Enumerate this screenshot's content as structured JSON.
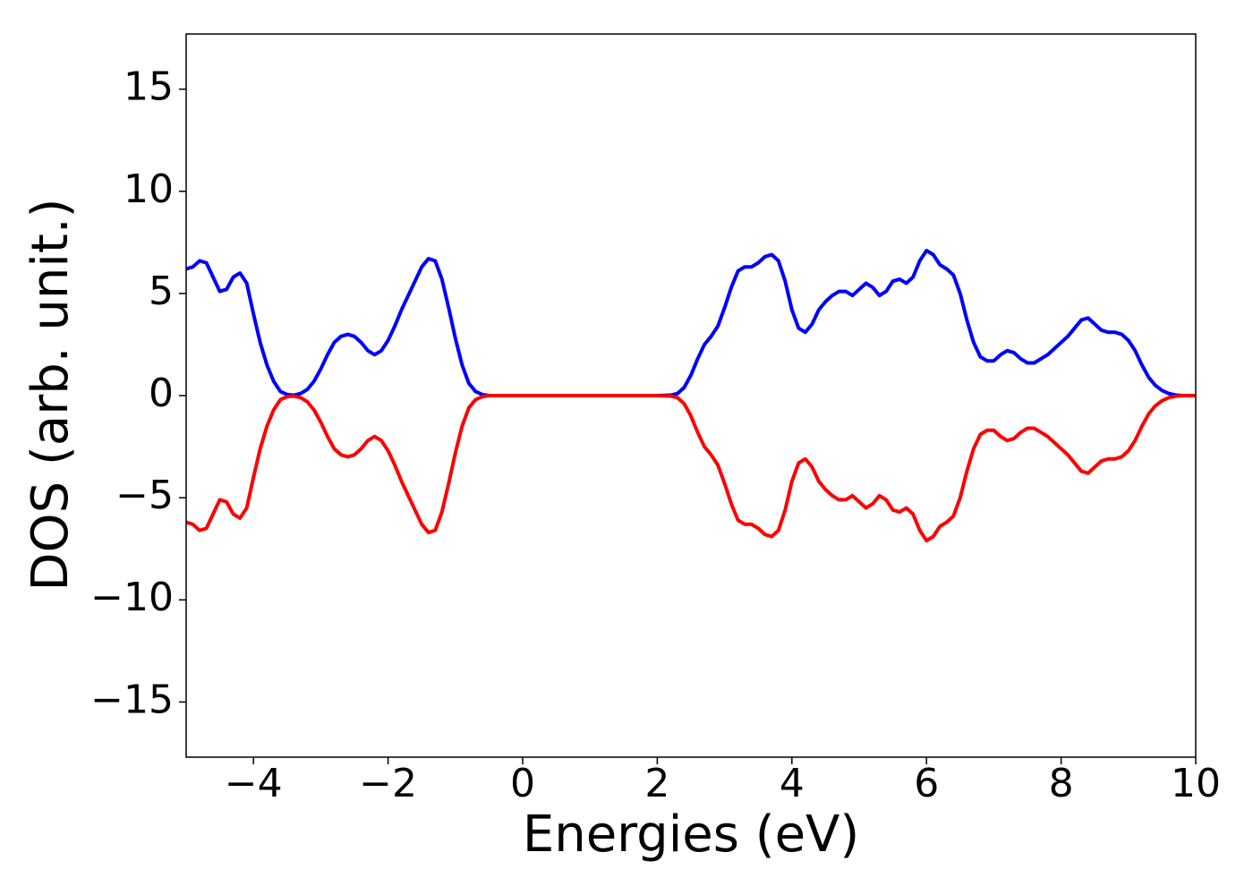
{
  "chart_data": {
    "type": "line",
    "xlabel": "Energies (eV)",
    "ylabel": "DOS (arb. unit.)",
    "xlim": [
      -5,
      10
    ],
    "ylim": [
      -17.7,
      17.7
    ],
    "xticks": [
      {
        "value": -4,
        "label": "−4"
      },
      {
        "value": -2,
        "label": "−2"
      },
      0,
      2,
      4,
      6,
      8,
      10
    ],
    "yticks": [
      {
        "value": -15,
        "label": "−15"
      },
      {
        "value": -10,
        "label": "−10"
      },
      {
        "value": -5,
        "label": "−5"
      },
      0,
      5,
      10,
      15
    ],
    "grid": false,
    "x": [
      -5,
      -4.9,
      -4.8,
      -4.7,
      -4.6,
      -4.5,
      -4.4,
      -4.3,
      -4.2,
      -4.1,
      -4,
      -3.9,
      -3.8,
      -3.7,
      -3.6,
      -3.5,
      -3.4,
      -3.3,
      -3.2,
      -3.1,
      -3,
      -2.9,
      -2.8,
      -2.7,
      -2.6,
      -2.5,
      -2.4,
      -2.3,
      -2.2,
      -2.1,
      -2,
      -1.9,
      -1.8,
      -1.7,
      -1.6,
      -1.5,
      -1.4,
      -1.3,
      -1.2,
      -1.1,
      -1,
      -0.9,
      -0.8,
      -0.7,
      -0.6,
      -0.5,
      0,
      1,
      2,
      2.2,
      2.3,
      2.4,
      2.5,
      2.6,
      2.7,
      2.8,
      2.9,
      3,
      3.1,
      3.2,
      3.3,
      3.4,
      3.5,
      3.6,
      3.7,
      3.8,
      3.9,
      4,
      4.1,
      4.2,
      4.3,
      4.4,
      4.5,
      4.6,
      4.7,
      4.8,
      4.9,
      5,
      5.1,
      5.2,
      5.3,
      5.4,
      5.5,
      5.6,
      5.7,
      5.8,
      5.9,
      6,
      6.1,
      6.2,
      6.3,
      6.4,
      6.5,
      6.6,
      6.7,
      6.8,
      6.9,
      7,
      7.1,
      7.2,
      7.3,
      7.4,
      7.5,
      7.6,
      7.7,
      7.8,
      7.9,
      8,
      8.1,
      8.2,
      8.3,
      8.4,
      8.5,
      8.6,
      8.7,
      8.8,
      8.9,
      9,
      9.1,
      9.2,
      9.3,
      9.4,
      9.5,
      9.6,
      9.7,
      9.8,
      10
    ],
    "series": [
      {
        "color": "#0000ff",
        "values": [
          6.2,
          6.3,
          6.6,
          6.5,
          5.8,
          5.1,
          5.2,
          5.8,
          6.0,
          5.5,
          4.0,
          2.6,
          1.5,
          0.7,
          0.2,
          0.05,
          0.02,
          0.1,
          0.3,
          0.7,
          1.3,
          2.0,
          2.6,
          2.9,
          3.0,
          2.9,
          2.6,
          2.2,
          2.0,
          2.2,
          2.7,
          3.4,
          4.2,
          4.9,
          5.6,
          6.3,
          6.7,
          6.6,
          5.7,
          4.3,
          2.8,
          1.5,
          0.6,
          0.2,
          0.05,
          0,
          0,
          0,
          0,
          0.02,
          0.1,
          0.4,
          1.0,
          1.8,
          2.5,
          2.9,
          3.4,
          4.3,
          5.3,
          6.1,
          6.3,
          6.3,
          6.5,
          6.8,
          6.9,
          6.6,
          5.6,
          4.2,
          3.3,
          3.1,
          3.5,
          4.2,
          4.6,
          4.9,
          5.1,
          5.1,
          4.9,
          5.2,
          5.5,
          5.3,
          4.9,
          5.1,
          5.6,
          5.7,
          5.5,
          5.8,
          6.6,
          7.1,
          6.9,
          6.4,
          6.2,
          5.9,
          5.0,
          3.7,
          2.6,
          1.9,
          1.7,
          1.7,
          2.0,
          2.2,
          2.1,
          1.8,
          1.6,
          1.6,
          1.8,
          2.0,
          2.3,
          2.6,
          2.9,
          3.3,
          3.7,
          3.8,
          3.5,
          3.2,
          3.1,
          3.1,
          3.0,
          2.7,
          2.2,
          1.5,
          0.9,
          0.5,
          0.25,
          0.1,
          0.03,
          0,
          0
        ]
      },
      {
        "color": "#ff0000",
        "values": [
          -6.2,
          -6.3,
          -6.6,
          -6.5,
          -5.8,
          -5.1,
          -5.2,
          -5.8,
          -6.0,
          -5.5,
          -4.0,
          -2.6,
          -1.5,
          -0.7,
          -0.2,
          -0.05,
          -0.02,
          -0.1,
          -0.3,
          -0.7,
          -1.3,
          -2.0,
          -2.6,
          -2.9,
          -3.0,
          -2.9,
          -2.6,
          -2.2,
          -2.0,
          -2.2,
          -2.7,
          -3.4,
          -4.2,
          -4.9,
          -5.6,
          -6.3,
          -6.7,
          -6.6,
          -5.7,
          -4.3,
          -2.8,
          -1.5,
          -0.6,
          -0.2,
          -0.05,
          0,
          0,
          0,
          0,
          -0.02,
          -0.1,
          -0.4,
          -1.0,
          -1.8,
          -2.5,
          -2.9,
          -3.4,
          -4.3,
          -5.3,
          -6.1,
          -6.3,
          -6.3,
          -6.5,
          -6.8,
          -6.9,
          -6.6,
          -5.6,
          -4.2,
          -3.3,
          -3.1,
          -3.5,
          -4.2,
          -4.6,
          -4.9,
          -5.1,
          -5.1,
          -4.9,
          -5.2,
          -5.5,
          -5.3,
          -4.9,
          -5.1,
          -5.6,
          -5.7,
          -5.5,
          -5.8,
          -6.6,
          -7.1,
          -6.9,
          -6.4,
          -6.2,
          -5.9,
          -5.0,
          -3.7,
          -2.6,
          -1.9,
          -1.7,
          -1.7,
          -2.0,
          -2.2,
          -2.1,
          -1.8,
          -1.6,
          -1.6,
          -1.8,
          -2.0,
          -2.3,
          -2.6,
          -2.9,
          -3.3,
          -3.7,
          -3.8,
          -3.5,
          -3.2,
          -3.1,
          -3.1,
          -3.0,
          -2.7,
          -2.2,
          -1.5,
          -0.9,
          -0.5,
          -0.25,
          -0.1,
          -0.03,
          0,
          0
        ]
      }
    ]
  }
}
